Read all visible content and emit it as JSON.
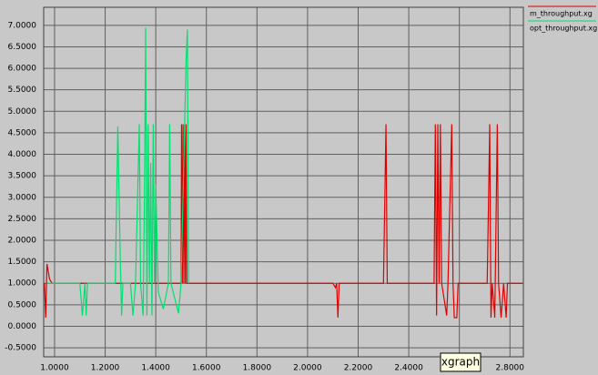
{
  "chart_data": {
    "type": "line",
    "series": [
      {
        "name": "m_throughput.xg",
        "color": "#e00000",
        "x": [
          0.96,
          0.965,
          0.97,
          0.98,
          0.99,
          1.5,
          1.502,
          1.505,
          1.508,
          1.511,
          1.514,
          1.517,
          1.52,
          1.523,
          2.1,
          2.11,
          2.115,
          2.12,
          2.125,
          2.3,
          2.305,
          2.31,
          2.315,
          2.5,
          2.505,
          2.51,
          2.515,
          2.52,
          2.525,
          2.53,
          2.55,
          2.555,
          2.57,
          2.575,
          2.58,
          2.59,
          2.595,
          2.71,
          2.715,
          2.72,
          2.725,
          2.73,
          2.74,
          2.75,
          2.755,
          2.765,
          2.775,
          2.785,
          2.79,
          2.85
        ],
        "values": [
          1.0,
          0.2,
          1.45,
          1.1,
          1.0,
          1.0,
          4.7,
          1.0,
          4.7,
          1.0,
          4.7,
          1.0,
          4.7,
          1.0,
          1.0,
          0.9,
          1.0,
          0.2,
          1.0,
          1.0,
          2.8,
          4.7,
          1.0,
          1.0,
          4.7,
          0.25,
          4.7,
          1.0,
          4.7,
          1.0,
          0.25,
          1.0,
          4.7,
          1.0,
          0.2,
          0.2,
          1.0,
          1.0,
          2.8,
          4.7,
          0.2,
          1.0,
          0.2,
          4.7,
          1.0,
          0.2,
          1.0,
          0.2,
          1.0,
          1.0
        ]
      },
      {
        "name": "opt_throughput.xg",
        "color": "#00e070",
        "x": [
          0.97,
          1.1,
          1.11,
          1.12,
          1.125,
          1.13,
          1.24,
          1.25,
          1.26,
          1.265,
          1.27,
          1.3,
          1.31,
          1.32,
          1.335,
          1.34,
          1.35,
          1.355,
          1.36,
          1.365,
          1.37,
          1.375,
          1.38,
          1.385,
          1.39,
          1.395,
          1.4,
          1.41,
          1.43,
          1.45,
          1.455,
          1.46,
          1.49,
          1.5,
          1.52,
          1.525,
          1.53
        ],
        "values": [
          1.0,
          1.0,
          0.25,
          1.0,
          0.25,
          1.0,
          1.0,
          4.65,
          1.5,
          0.25,
          1.0,
          1.0,
          0.25,
          1.0,
          4.7,
          1.0,
          0.25,
          2.8,
          6.95,
          0.25,
          4.7,
          1.0,
          3.8,
          0.25,
          4.7,
          1.0,
          3.3,
          0.8,
          0.4,
          1.0,
          4.7,
          1.0,
          0.3,
          1.0,
          6.2,
          6.9,
          1.0
        ]
      }
    ],
    "xlim": [
      0.957,
      2.853
    ],
    "ylim": [
      -0.71,
      7.42
    ],
    "xticks": [
      {
        "value": 1.0,
        "label": "1.0000"
      },
      {
        "value": 1.2,
        "label": "1.2000"
      },
      {
        "value": 1.4,
        "label": "1.4000"
      },
      {
        "value": 1.6,
        "label": "1.6000"
      },
      {
        "value": 1.8,
        "label": "1.8000"
      },
      {
        "value": 2.0,
        "label": "2.0000"
      },
      {
        "value": 2.2,
        "label": "2.2000"
      },
      {
        "value": 2.4,
        "label": "2.4000"
      },
      {
        "value": 2.6,
        "label": "2.6000"
      },
      {
        "value": 2.8,
        "label": "2.8000"
      }
    ],
    "yticks": [
      {
        "value": -0.5,
        "label": "-0.5000"
      },
      {
        "value": 0,
        "label": "0.0000"
      },
      {
        "value": 0.5,
        "label": "0.5000"
      },
      {
        "value": 1.0,
        "label": "1.0000"
      },
      {
        "value": 1.5,
        "label": "1.5000"
      },
      {
        "value": 2.0,
        "label": "2.0000"
      },
      {
        "value": 2.5,
        "label": "2.5000"
      },
      {
        "value": 3.0,
        "label": "3.0000"
      },
      {
        "value": 3.5,
        "label": "3.5000"
      },
      {
        "value": 4.0,
        "label": "4.0000"
      },
      {
        "value": 4.5,
        "label": "4.5000"
      },
      {
        "value": 5.0,
        "label": "5.0000"
      },
      {
        "value": 5.5,
        "label": "5.5000"
      },
      {
        "value": 6.0,
        "label": "6.0000"
      },
      {
        "value": 6.5,
        "label": "6.5000"
      },
      {
        "value": 7.0,
        "label": "7.0000"
      }
    ],
    "grid": true,
    "legend": "top-right",
    "tooltip": "xgraph"
  }
}
